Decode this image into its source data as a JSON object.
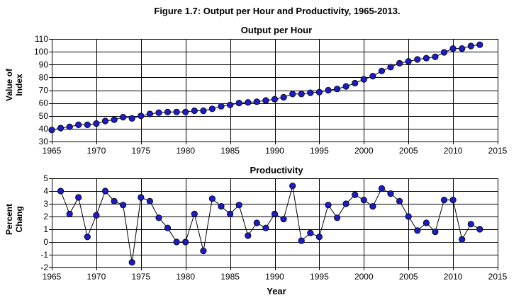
{
  "figure_title": "Figure 1.7: Output per Hour and Productivity, 1965-2013.",
  "chart_data": [
    {
      "type": "line",
      "title": "Output per Hour",
      "ylabel": [
        "Value of",
        "Index"
      ],
      "xlabel": "",
      "xlim": [
        1965,
        2015
      ],
      "ylim": [
        30,
        110
      ],
      "xticks": [
        1965,
        1970,
        1975,
        1980,
        1985,
        1990,
        1995,
        2000,
        2005,
        2010,
        2015
      ],
      "yticks": [
        30,
        40,
        50,
        60,
        70,
        80,
        90,
        100,
        110
      ],
      "grid": true,
      "x": [
        1965,
        1966,
        1967,
        1968,
        1969,
        1970,
        1971,
        1972,
        1973,
        1974,
        1975,
        1976,
        1977,
        1978,
        1979,
        1980,
        1981,
        1982,
        1983,
        1984,
        1985,
        1986,
        1987,
        1988,
        1989,
        1990,
        1991,
        1992,
        1993,
        1994,
        1995,
        1996,
        1997,
        1998,
        1999,
        2000,
        2001,
        2002,
        2003,
        2004,
        2005,
        2006,
        2007,
        2008,
        2009,
        2010,
        2011,
        2012,
        2013
      ],
      "values": [
        39,
        40.5,
        41.5,
        43,
        43,
        44,
        46,
        47,
        49,
        48,
        50,
        51.5,
        52.5,
        53,
        53,
        53,
        54,
        54,
        55.5,
        57.5,
        58.5,
        60,
        60.5,
        61,
        62,
        63,
        64.5,
        67,
        67,
        68,
        68.5,
        70,
        71,
        73,
        75.5,
        78.5,
        81,
        85,
        88,
        91,
        92.5,
        94,
        95,
        96,
        99.5,
        102.5,
        102.5,
        104.5,
        105.5
      ]
    },
    {
      "type": "line",
      "title": "Productivity",
      "ylabel": [
        "Percent",
        "Chang"
      ],
      "xlabel": "Year",
      "xlim": [
        1965,
        2015
      ],
      "ylim": [
        -2,
        5
      ],
      "xticks": [
        1965,
        1970,
        1975,
        1980,
        1985,
        1990,
        1995,
        2000,
        2005,
        2010,
        2015
      ],
      "yticks": [
        -2,
        -1,
        0,
        1,
        2,
        3,
        4,
        5
      ],
      "grid": true,
      "x": [
        1966,
        1967,
        1968,
        1969,
        1970,
        1971,
        1972,
        1973,
        1974,
        1975,
        1976,
        1977,
        1978,
        1979,
        1980,
        1981,
        1982,
        1983,
        1984,
        1985,
        1986,
        1987,
        1988,
        1989,
        1990,
        1991,
        1992,
        1993,
        1994,
        1995,
        1996,
        1997,
        1998,
        1999,
        2000,
        2001,
        2002,
        2003,
        2004,
        2005,
        2006,
        2007,
        2008,
        2009,
        2010,
        2011,
        2012,
        2013
      ],
      "values": [
        4.0,
        2.2,
        3.5,
        0.4,
        2.1,
        4.0,
        3.2,
        2.9,
        -1.6,
        3.5,
        3.2,
        1.9,
        1.1,
        0.0,
        0.0,
        2.2,
        -0.7,
        3.4,
        2.8,
        2.2,
        2.9,
        0.5,
        1.5,
        1.1,
        2.2,
        1.8,
        4.4,
        0.1,
        0.7,
        0.4,
        2.9,
        1.9,
        3.0,
        3.7,
        3.3,
        2.8,
        4.2,
        3.8,
        3.2,
        2.0,
        0.9,
        1.5,
        0.8,
        3.3,
        3.3,
        0.2,
        1.4,
        1.0
      ]
    }
  ]
}
